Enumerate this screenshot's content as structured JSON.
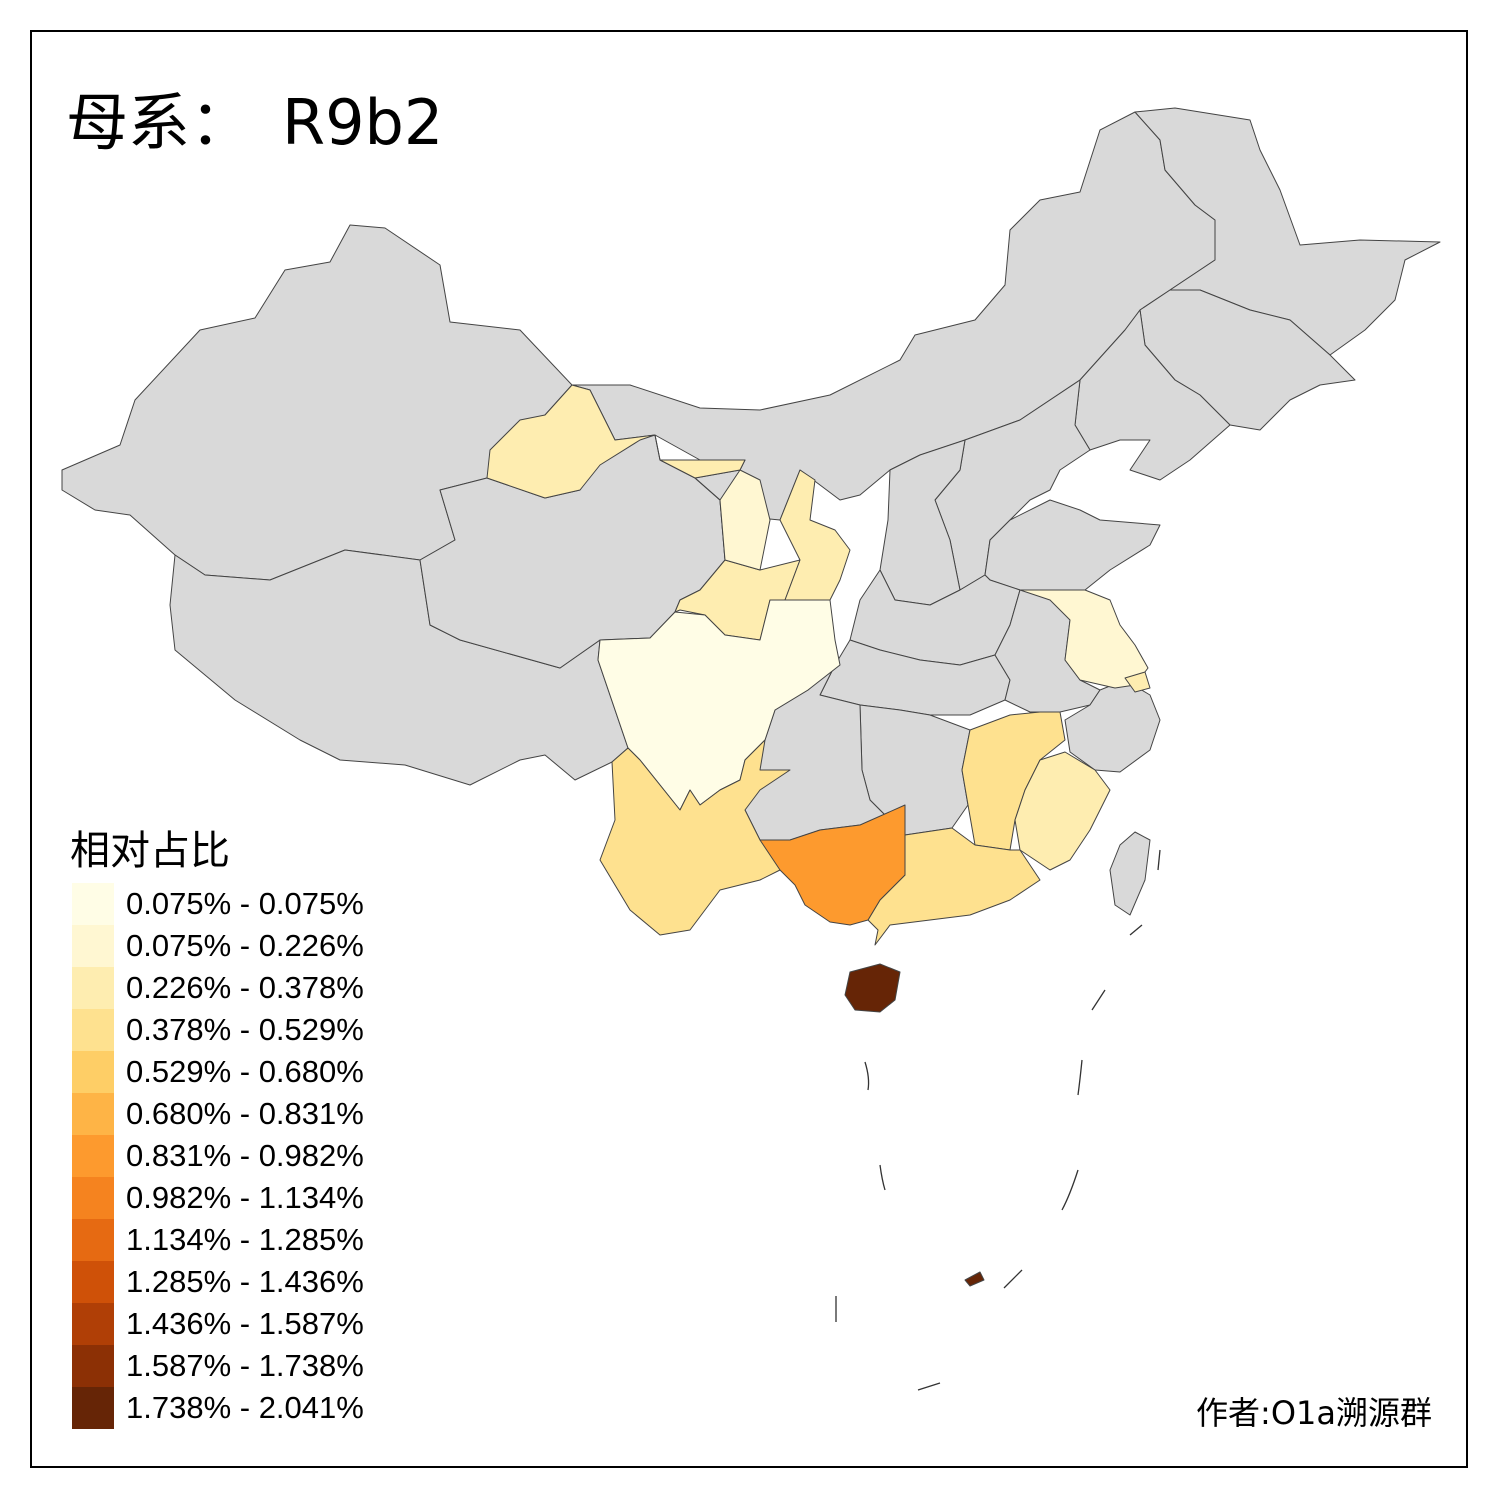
{
  "title": {
    "prefix": "母系：",
    "haplogroup": "R9b2"
  },
  "legend": {
    "title": "相对占比",
    "bins": [
      {
        "label": "0.075% - 0.075%",
        "color": "#fffde6"
      },
      {
        "label": "0.075% - 0.226%",
        "color": "#fff7d2"
      },
      {
        "label": "0.226% - 0.378%",
        "color": "#feedb0"
      },
      {
        "label": "0.378% - 0.529%",
        "color": "#fee18f"
      },
      {
        "label": "0.529% - 0.680%",
        "color": "#fece66"
      },
      {
        "label": "0.680% - 0.831%",
        "color": "#feb446"
      },
      {
        "label": "0.831% - 0.982%",
        "color": "#fd9a2e"
      },
      {
        "label": "0.982% - 1.134%",
        "color": "#f5831f"
      },
      {
        "label": "1.134% - 1.285%",
        "color": "#e66a12"
      },
      {
        "label": "1.285% - 1.436%",
        "color": "#cf5108"
      },
      {
        "label": "1.436% - 1.587%",
        "color": "#b03f06"
      },
      {
        "label": "1.587% - 1.738%",
        "color": "#8c3005"
      },
      {
        "label": "1.738% - 2.041%",
        "color": "#662506"
      }
    ]
  },
  "regions": {
    "no_data_color": "#d9d9d9",
    "gansu": {
      "bin": 2
    },
    "shaanxi": {
      "bin": 2
    },
    "ningxia": {
      "bin": 1
    },
    "sichuan": {
      "bin": 0
    },
    "jiangsu": {
      "bin": 1
    },
    "shanghai": {
      "bin": 2
    },
    "yunnan": {
      "bin": 3
    },
    "jiangxi": {
      "bin": 3
    },
    "fujian": {
      "bin": 2
    },
    "guangdong": {
      "bin": 3
    },
    "guangxi": {
      "bin": 6
    },
    "hainan": {
      "bin": 12
    }
  },
  "credit": "作者:O1a溯源群"
}
